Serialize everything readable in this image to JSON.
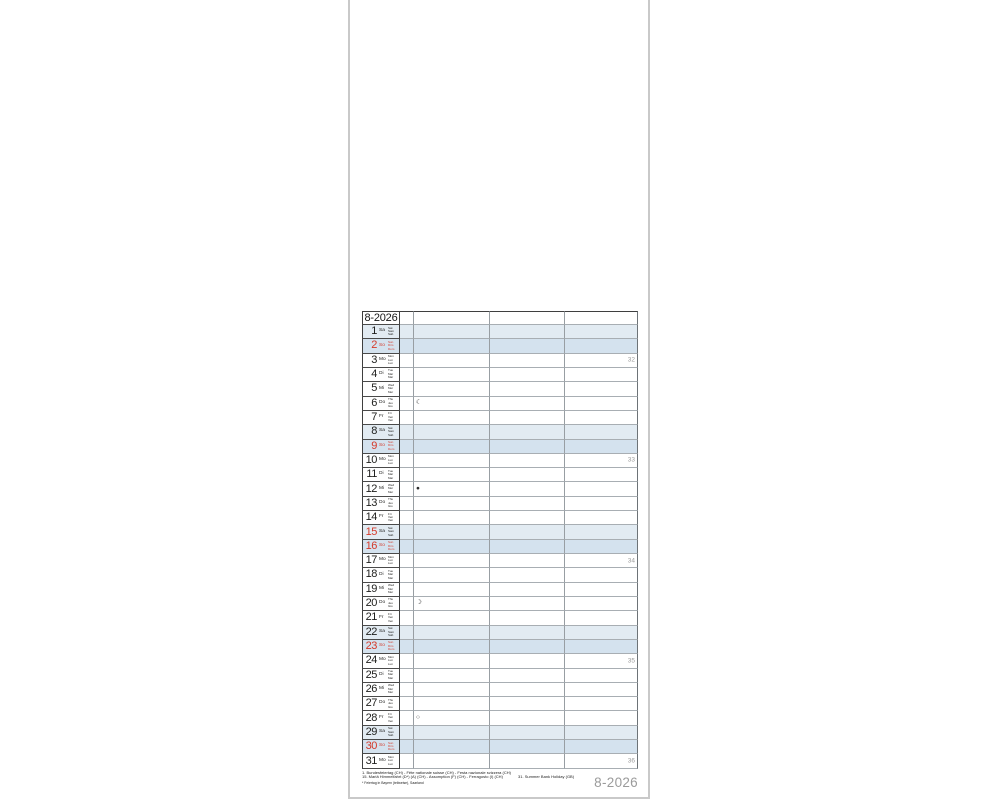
{
  "header": {
    "month_label": "8-2026"
  },
  "weekday_stacks": {
    "Mo": [
      "Mon",
      "Lun",
      "Lun"
    ],
    "Di": [
      "Tue",
      "Mar",
      "Mar"
    ],
    "Mi": [
      "Wed",
      "Mer",
      "Mer"
    ],
    "Do": [
      "Thu",
      "Jeu",
      "Gio"
    ],
    "Fr": [
      "Fri",
      "Ven",
      "Ven"
    ],
    "Sa": [
      "Sat",
      "Sam",
      "Sab"
    ],
    "So": [
      "Sun",
      "Dim",
      "Dom"
    ]
  },
  "days": [
    {
      "num": 1,
      "dow": "Sa"
    },
    {
      "num": 2,
      "dow": "So"
    },
    {
      "num": 3,
      "dow": "Mo",
      "week": 32
    },
    {
      "num": 4,
      "dow": "Di"
    },
    {
      "num": 5,
      "dow": "Mi"
    },
    {
      "num": 6,
      "dow": "Do",
      "moon": "☾"
    },
    {
      "num": 7,
      "dow": "Fr"
    },
    {
      "num": 8,
      "dow": "Sa"
    },
    {
      "num": 9,
      "dow": "So"
    },
    {
      "num": 10,
      "dow": "Mo",
      "week": 33
    },
    {
      "num": 11,
      "dow": "Di"
    },
    {
      "num": 12,
      "dow": "Mi",
      "moon": "●"
    },
    {
      "num": 13,
      "dow": "Do"
    },
    {
      "num": 14,
      "dow": "Fr"
    },
    {
      "num": 15,
      "dow": "Sa",
      "holiday": true
    },
    {
      "num": 16,
      "dow": "So"
    },
    {
      "num": 17,
      "dow": "Mo",
      "week": 34
    },
    {
      "num": 18,
      "dow": "Di"
    },
    {
      "num": 19,
      "dow": "Mi"
    },
    {
      "num": 20,
      "dow": "Do",
      "moon": "☽"
    },
    {
      "num": 21,
      "dow": "Fr"
    },
    {
      "num": 22,
      "dow": "Sa"
    },
    {
      "num": 23,
      "dow": "So"
    },
    {
      "num": 24,
      "dow": "Mo",
      "week": 35
    },
    {
      "num": 25,
      "dow": "Di"
    },
    {
      "num": 26,
      "dow": "Mi"
    },
    {
      "num": 27,
      "dow": "Do"
    },
    {
      "num": 28,
      "dow": "Fr",
      "moon": "○"
    },
    {
      "num": 29,
      "dow": "Sa"
    },
    {
      "num": 30,
      "dow": "So"
    },
    {
      "num": 31,
      "dow": "Mo",
      "week": 36
    }
  ],
  "footer": {
    "line1": "1. Bundesfeiertag (CH) - Fête nationale suisse (CH) - Festa nazionale svizzera (CH)",
    "line2": "15. Mariä Himmelfahrt (D*) (A) (CH) - Assomption (F) (CH) - Ferragosto (I) (CH)",
    "line2b": "31. Summer Bank Holiday (GB)",
    "note": "* Feiertag in Bayern (teilweise), Saarland",
    "month_label": "8-2026"
  },
  "colors": {
    "saturday_bg": "#e2ebf2",
    "sunday_bg": "#d4e2ee",
    "red": "#d53929",
    "week_number_grey": "#9b9b9b"
  }
}
